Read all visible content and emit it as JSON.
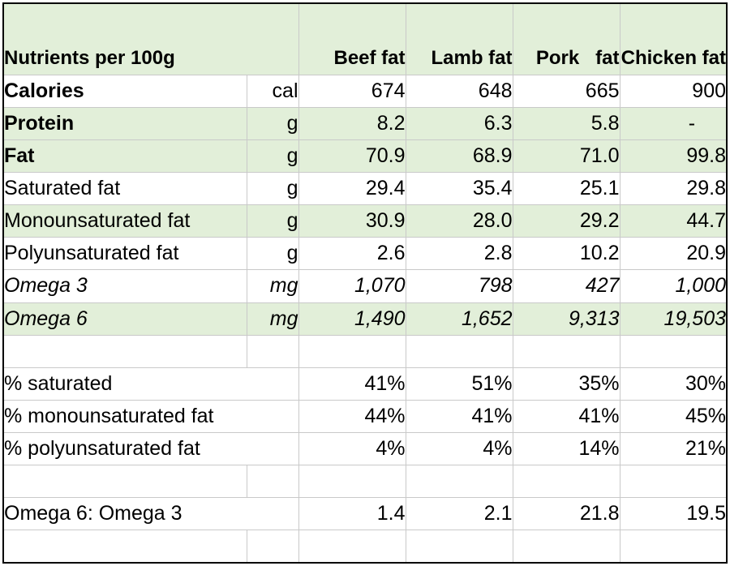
{
  "chart_data": {
    "type": "table",
    "header": {
      "label": "Nutrients per 100g",
      "columns": [
        "Beef fat",
        "Lamb fat",
        "Pork   fat",
        "Chicken fat"
      ]
    },
    "rows": [
      {
        "label": "Calories",
        "unit": "cal",
        "values": [
          "674",
          "648",
          "665",
          "900"
        ]
      },
      {
        "label": "Protein",
        "unit": "g",
        "values": [
          "8.2",
          "6.3",
          "5.8",
          "-"
        ]
      },
      {
        "label": "Fat",
        "unit": "g",
        "values": [
          "70.9",
          "68.9",
          "71.0",
          "99.8"
        ]
      },
      {
        "label": "Saturated fat",
        "unit": "g",
        "values": [
          "29.4",
          "35.4",
          "25.1",
          "29.8"
        ]
      },
      {
        "label": "Monounsaturated fat",
        "unit": "g",
        "values": [
          "30.9",
          "28.0",
          "29.2",
          "44.7"
        ]
      },
      {
        "label": "Polyunsaturated fat",
        "unit": "g",
        "values": [
          "2.6",
          "2.8",
          "10.2",
          "20.9"
        ]
      },
      {
        "label": "Omega 3",
        "unit": "mg",
        "values": [
          "1,070",
          "798",
          "427",
          "1,000"
        ]
      },
      {
        "label": "Omega 6",
        "unit": "mg",
        "values": [
          "1,490",
          "1,652",
          "9,313",
          "19,503"
        ]
      },
      {
        "label": "% saturated",
        "unit": "",
        "values": [
          "41%",
          "51%",
          "35%",
          "30%"
        ]
      },
      {
        "label": "% monounsaturated fat",
        "unit": "",
        "values": [
          "44%",
          "41%",
          "41%",
          "45%"
        ]
      },
      {
        "label": "% polyunsaturated fat",
        "unit": "",
        "values": [
          "4%",
          "4%",
          "14%",
          "21%"
        ]
      },
      {
        "label": "Omega 6: Omega 3",
        "unit": "",
        "values": [
          "1.4",
          "2.1",
          "21.8",
          "19.5"
        ]
      }
    ]
  },
  "colors": {
    "header_fill": "#e2efd9",
    "highlight_fill": "#e2efd9",
    "grid": "#c9c9c9"
  }
}
